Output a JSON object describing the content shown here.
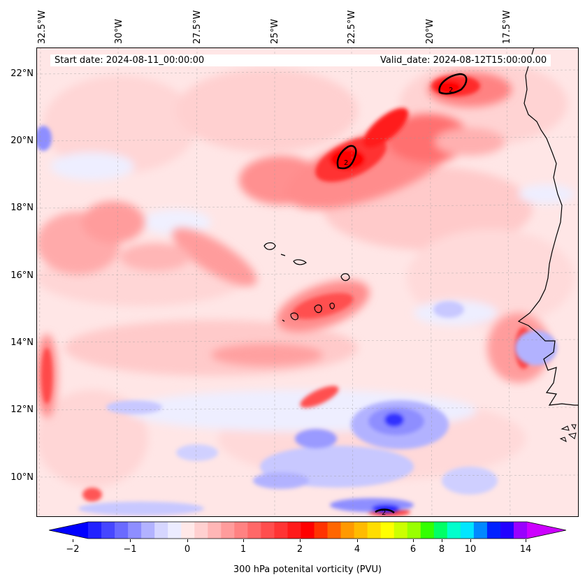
{
  "map": {
    "start_date": "Start date: 2024-08-11_00:00:00",
    "valid_date": "Valid_date: 2024-08-12T15:00:00.00",
    "longitude_labels": [
      "32.5°W",
      "30°W",
      "27.5°W",
      "25°W",
      "22.5°W",
      "20°W",
      "17.5°W"
    ],
    "latitude_labels": [
      "22°N",
      "20°N",
      "18°N",
      "16°N",
      "14°N",
      "12°N",
      "10°N"
    ],
    "contour_label": "2"
  },
  "colorbar": {
    "label": "300 hPa potenital vorticity (PVU)",
    "tick_labels": [
      "−2",
      "−1",
      "0",
      "1",
      "2",
      "4",
      "6",
      "8",
      "10",
      "14"
    ],
    "colors": [
      "#0000ff",
      "#2222ff",
      "#4646ff",
      "#6a6aff",
      "#8e8eff",
      "#b2b2ff",
      "#d6d6ff",
      "#ececff",
      "#ffe8e8",
      "#ffd0d0",
      "#ffb6b6",
      "#ff9c9c",
      "#ff8282",
      "#ff6868",
      "#ff4e4e",
      "#ff3434",
      "#ff1a1a",
      "#ff0000",
      "#ff3300",
      "#ff6600",
      "#ff9900",
      "#ffbb00",
      "#ffdd00",
      "#ffff00",
      "#ccff00",
      "#99ff00",
      "#33ff00",
      "#00ff66",
      "#00ffcc",
      "#00e6ff",
      "#0088ff",
      "#0022ff",
      "#2200ff",
      "#9900ff",
      "#cc00ff"
    ]
  }
}
